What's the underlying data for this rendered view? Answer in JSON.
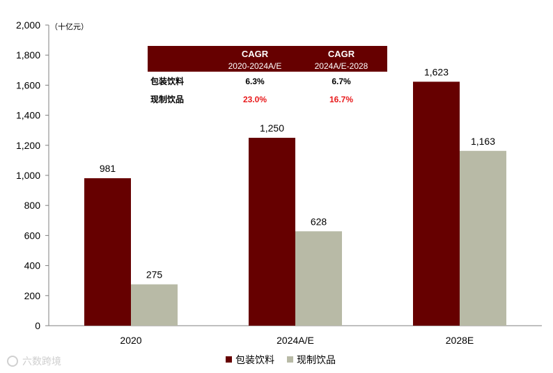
{
  "chart_data": {
    "type": "bar",
    "unit_label": "（十亿元）",
    "categories": [
      "2020",
      "2024A/E",
      "2028E"
    ],
    "series": [
      {
        "name": "包装饮料",
        "values": [
          981,
          1250,
          1623
        ],
        "color": "#660000",
        "labels": [
          "981",
          "1,250",
          "1,623"
        ]
      },
      {
        "name": "现制饮品",
        "values": [
          275,
          628,
          1163
        ],
        "color": "#b8baa6",
        "labels": [
          "275",
          "628",
          "1,163"
        ]
      }
    ],
    "ylim": [
      0,
      2000
    ],
    "yticks": [
      0,
      200,
      400,
      600,
      800,
      1000,
      1200,
      1400,
      1600,
      1800,
      2000
    ],
    "ytick_labels": [
      "0",
      "200",
      "400",
      "600",
      "800",
      "1,000",
      "1,200",
      "1,400",
      "1,600",
      "1,800",
      "2,000"
    ],
    "grid": false,
    "legend_position": "bottom-center"
  },
  "cagr_table": {
    "header_fill": "#660000",
    "columns": [
      {
        "title": "CAGR",
        "period": "2020-2024A/E"
      },
      {
        "title": "CAGR",
        "period": "2024A/E-2028"
      }
    ],
    "rows": [
      {
        "label": "包装饮料",
        "values": [
          "6.3%",
          "6.7%"
        ],
        "color": "#000000"
      },
      {
        "label": "现制饮品",
        "values": [
          "23.0%",
          "16.7%"
        ],
        "color": "#e8191b"
      }
    ]
  },
  "watermark": "六数跨境"
}
